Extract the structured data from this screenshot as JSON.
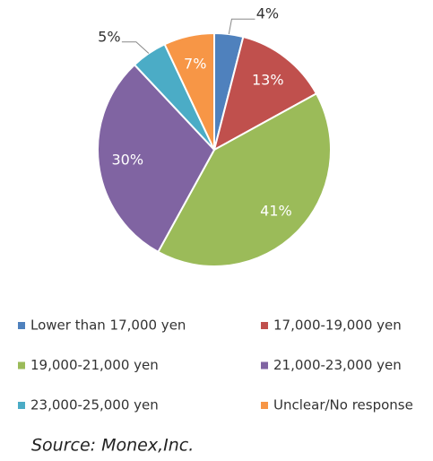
{
  "chart_data": {
    "type": "pie",
    "categories": [
      "Lower than 17,000 yen",
      "17,000-19,000 yen",
      "19,000-21,000 yen",
      "21,000-23,000 yen",
      "23,000-25,000 yen",
      "Unclear/No response"
    ],
    "values": [
      4,
      13,
      41,
      30,
      5,
      7
    ],
    "value_labels": [
      "4%",
      "13%",
      "41%",
      "30%",
      "5%",
      "7%"
    ],
    "colors": [
      "#4f81bd",
      "#c0504d",
      "#9bbb59",
      "#8064a2",
      "#4bacc6",
      "#f79646"
    ],
    "source": "Source: Monex,Inc."
  }
}
